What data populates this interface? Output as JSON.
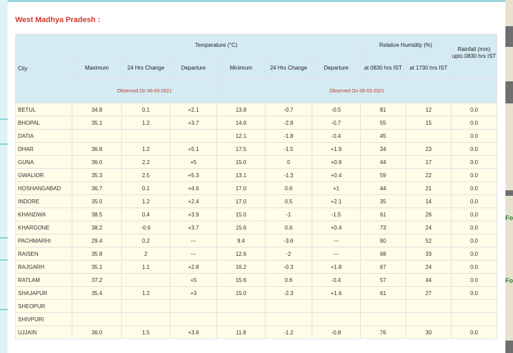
{
  "page": {
    "title": "West Madhya Pradesh :"
  },
  "side": {
    "right_labels": [
      "Fo",
      "Fo"
    ]
  },
  "table": {
    "headers": {
      "city": "City",
      "temperature": "Temperature (°C)",
      "humidity": "Relative Humidity (%)",
      "rainfall": "Rainfall (mm) upto 0830 hrs IST",
      "maximum": "Maximum",
      "change24": "24 Hrs Change",
      "departure": "Departure",
      "minimum": "Minimum",
      "rh0830": "at 0830 hrs IST",
      "rh1730": "at 1730 hrs IST",
      "observed_left": "Observed On 06-03-2021",
      "observed_right": "Observed On 06-03-2021"
    },
    "rows": [
      [
        "BETUL",
        "34.8",
        "0.1",
        "+2.1",
        "13.8",
        "-0.7",
        "-0.5",
        "81",
        "12",
        "0.0"
      ],
      [
        "BHOPAL",
        "35.1",
        "1.2",
        "+3.7",
        "14.6",
        "-2.8",
        "-0.7",
        "55",
        "15",
        "0.0"
      ],
      [
        "DATIA",
        "",
        "",
        "",
        "12.1",
        "-1.8",
        "-0.4",
        "45",
        "",
        "0.0"
      ],
      [
        "DHAR",
        "36.8",
        "1.2",
        "+5.1",
        "17.5",
        "-1.5",
        "+1.9",
        "34",
        "23",
        "0.0"
      ],
      [
        "GUNA",
        "36.0",
        "2.2",
        "+5",
        "15.0",
        "0",
        "+0.9",
        "44",
        "17",
        "0.0"
      ],
      [
        "GWALIOR",
        "35.3",
        "2.5",
        "+5.3",
        "13.1",
        "-1.3",
        "+0.4",
        "59",
        "22",
        "0.0"
      ],
      [
        "HOSHANGABAD",
        "36.7",
        "0.1",
        "+4.6",
        "17.0",
        "0.6",
        "+1",
        "44",
        "21",
        "0.0"
      ],
      [
        "INDORE",
        "35.0",
        "1.2",
        "+2.4",
        "17.0",
        "0.5",
        "+2.1",
        "35",
        "14",
        "0.0"
      ],
      [
        "KHANDWA",
        "38.5",
        "0.4",
        "+3.9",
        "15.0",
        "-1",
        "-1.5",
        "61",
        "26",
        "0.0"
      ],
      [
        "KHARGONE",
        "38.2",
        "-0.6",
        "+3.7",
        "15.6",
        "0.6",
        "+0.4",
        "73",
        "24",
        "0.0"
      ],
      [
        "PACHMARHI",
        "29.4",
        "0.2",
        "---",
        "9.4",
        "-3.6",
        "---",
        "90",
        "52",
        "0.0"
      ],
      [
        "RAISEN",
        "35.8",
        "2",
        "---",
        "12.6",
        "-2",
        "---",
        "68",
        "33",
        "0.0"
      ],
      [
        "RAJGARH",
        "35.1",
        "1.1",
        "+2.8",
        "16.2",
        "-0.3",
        "+1.8",
        "67",
        "24",
        "0.0"
      ],
      [
        "RATLAM",
        "37.2",
        "",
        "+5",
        "15.6",
        "0.6",
        "-0.4",
        "57",
        "44",
        "0.0"
      ],
      [
        "SHAJAPUR",
        "35.4",
        "1.2",
        "+3",
        "15.0",
        "-2.3",
        "+1.6",
        "61",
        "27",
        "0.0"
      ],
      [
        "SHEOPUR",
        "",
        "",
        "",
        "",
        "",
        "",
        "",
        "",
        ""
      ],
      [
        "SHIVPURI",
        "",
        "",
        "",
        "",
        "",
        "",
        "",
        "",
        ""
      ],
      [
        "UJJAIN",
        "36.0",
        "1.5",
        "+3.6",
        "11.8",
        "-1.2",
        "-0.8",
        "76",
        "30",
        "0.0"
      ]
    ]
  },
  "colors": {
    "title": "#cc3a2b",
    "header_bg": "#d4ebf3",
    "row_bg": "#fdfde8",
    "observed_text": "#c0392b"
  }
}
